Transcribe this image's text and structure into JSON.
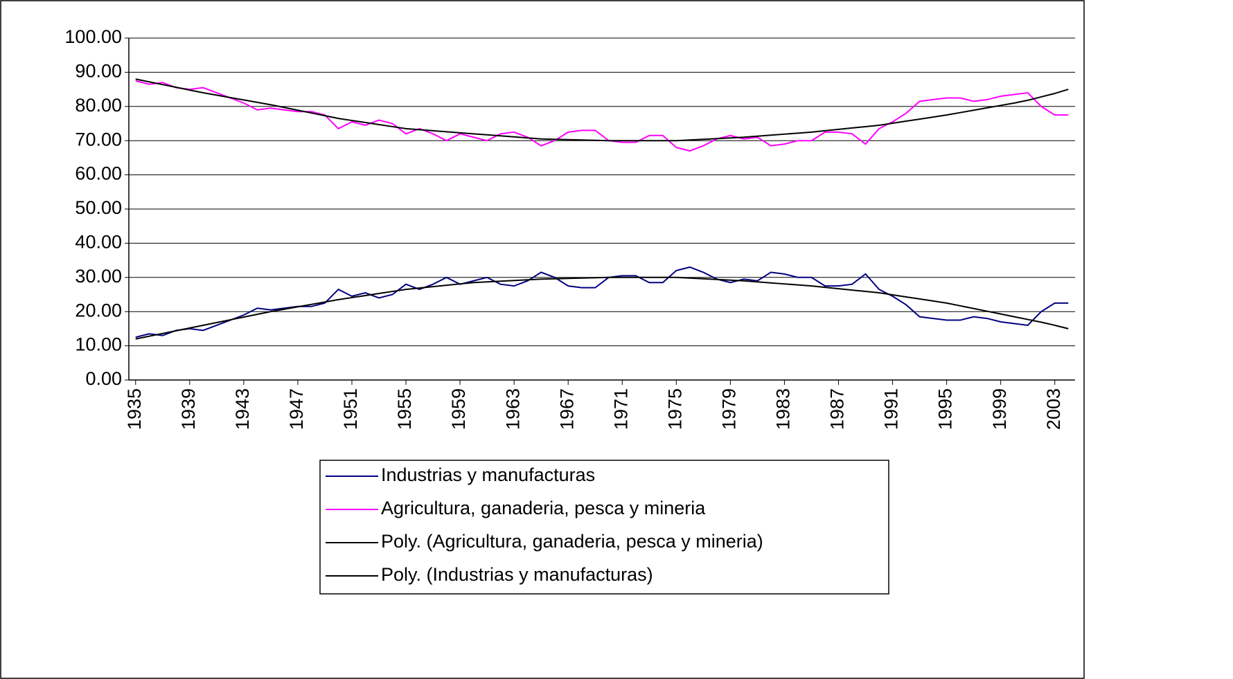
{
  "chart_data": {
    "type": "line",
    "x": [
      1935,
      1936,
      1937,
      1938,
      1939,
      1940,
      1941,
      1942,
      1943,
      1944,
      1945,
      1946,
      1947,
      1948,
      1949,
      1950,
      1951,
      1952,
      1953,
      1954,
      1955,
      1956,
      1957,
      1958,
      1959,
      1960,
      1961,
      1962,
      1963,
      1964,
      1965,
      1966,
      1967,
      1968,
      1969,
      1970,
      1971,
      1972,
      1973,
      1974,
      1975,
      1976,
      1977,
      1978,
      1979,
      1980,
      1981,
      1982,
      1983,
      1984,
      1985,
      1986,
      1987,
      1988,
      1989,
      1990,
      1991,
      1992,
      1993,
      1994,
      1995,
      1996,
      1997,
      1998,
      1999,
      2000,
      2001,
      2002,
      2003,
      2004
    ],
    "xlim": [
      1934.5,
      2004.5
    ],
    "xticks": [
      1935,
      1939,
      1943,
      1947,
      1951,
      1955,
      1959,
      1963,
      1967,
      1971,
      1975,
      1979,
      1983,
      1987,
      1991,
      1995,
      1999,
      2003
    ],
    "ylim": [
      0,
      100
    ],
    "yticks": [
      {
        "value": 0,
        "label": "0.00"
      },
      {
        "value": 10,
        "label": "10.00"
      },
      {
        "value": 20,
        "label": "20.00"
      },
      {
        "value": 30,
        "label": "30.00"
      },
      {
        "value": 40,
        "label": "40.00"
      },
      {
        "value": 50,
        "label": "50.00"
      },
      {
        "value": 60,
        "label": "60.00"
      },
      {
        "value": 70,
        "label": "70.00"
      },
      {
        "value": 80,
        "label": "80.00"
      },
      {
        "value": 90,
        "label": "90.00"
      },
      {
        "value": 100,
        "label": "100.00"
      }
    ],
    "grid": true,
    "series": [
      {
        "name": "Industrias y manufacturas",
        "color": "#000080",
        "values": [
          12.5,
          13.5,
          13,
          14.5,
          15,
          14.5,
          16,
          17.5,
          19,
          21,
          20.5,
          21,
          21.5,
          21.5,
          22.5,
          26.5,
          24.5,
          25.5,
          24,
          25,
          28,
          26.5,
          28,
          30,
          28,
          29,
          30,
          28,
          27.5,
          29,
          31.5,
          30,
          27.5,
          27,
          27,
          30,
          30.5,
          30.5,
          28.5,
          28.5,
          32,
          33,
          31.5,
          29.5,
          28.5,
          29.5,
          29,
          31.5,
          31,
          30,
          30,
          27.5,
          27.5,
          28,
          31,
          26.5,
          24.5,
          22,
          18.5,
          18,
          17.5,
          17.5,
          18.5,
          18,
          17,
          16.5,
          16,
          20,
          22.5,
          22.5
        ]
      },
      {
        "name": "Agricultura, ganaderia, pesca y mineria",
        "color": "#ff00ff",
        "values": [
          87.5,
          86.5,
          87,
          85.5,
          85,
          85.5,
          84,
          82.5,
          81,
          79,
          79.5,
          79,
          78.5,
          78.5,
          77.5,
          73.5,
          75.5,
          74.5,
          76,
          75,
          72,
          73.5,
          72,
          70,
          72,
          71,
          70,
          72,
          72.5,
          71,
          68.5,
          70,
          72.5,
          73,
          73,
          70,
          69.5,
          69.5,
          71.5,
          71.5,
          68,
          67,
          68.5,
          70.5,
          71.5,
          70.5,
          71,
          68.5,
          69,
          70,
          70,
          72.5,
          72.5,
          72,
          69,
          73.5,
          75.5,
          78,
          81.5,
          82,
          82.5,
          82.5,
          81.5,
          82,
          83,
          83.5,
          84,
          80,
          77.5,
          77.5
        ]
      },
      {
        "name": "Poly. (Agricultura, ganaderia, pesca y mineria)",
        "color": "#000000",
        "values": [
          88.0,
          87.2,
          86.4,
          85.6,
          84.8,
          84.0,
          83.3,
          82.6,
          81.9,
          81.2,
          80.5,
          79.7,
          78.9,
          78.1,
          77.3,
          76.5,
          75.9,
          75.3,
          74.7,
          74.1,
          73.5,
          73.2,
          72.9,
          72.6,
          72.3,
          72.0,
          71.7,
          71.4,
          71.1,
          70.8,
          70.5,
          70.4,
          70.3,
          70.2,
          70.1,
          70.0,
          70.0,
          70.0,
          70.0,
          70.0,
          70.0,
          70.2,
          70.4,
          70.6,
          70.8,
          71.0,
          71.3,
          71.6,
          71.9,
          72.2,
          72.5,
          72.9,
          73.3,
          73.7,
          74.1,
          74.5,
          75.1,
          75.7,
          76.3,
          76.9,
          77.5,
          78.2,
          78.9,
          79.6,
          80.3,
          81.0,
          81.8,
          82.8,
          83.8,
          85.0
        ]
      },
      {
        "name": "Poly. (Industrias y manufacturas)",
        "color": "#000000",
        "values": [
          12.0,
          12.8,
          13.6,
          14.4,
          15.2,
          16.0,
          16.8,
          17.6,
          18.4,
          19.2,
          20.0,
          20.7,
          21.4,
          22.1,
          22.8,
          23.5,
          24.1,
          24.7,
          25.3,
          25.9,
          26.5,
          26.9,
          27.3,
          27.7,
          28.1,
          28.5,
          28.7,
          28.9,
          29.1,
          29.3,
          29.5,
          29.6,
          29.7,
          29.8,
          29.9,
          30.0,
          30.0,
          30.0,
          30.0,
          30.0,
          30.0,
          29.8,
          29.6,
          29.4,
          29.2,
          29.0,
          28.7,
          28.4,
          28.1,
          27.8,
          27.5,
          27.1,
          26.7,
          26.3,
          25.9,
          25.5,
          24.9,
          24.3,
          23.7,
          23.1,
          22.5,
          21.7,
          20.9,
          20.1,
          19.3,
          18.5,
          17.7,
          16.9,
          16.0,
          15.0
        ]
      }
    ]
  }
}
